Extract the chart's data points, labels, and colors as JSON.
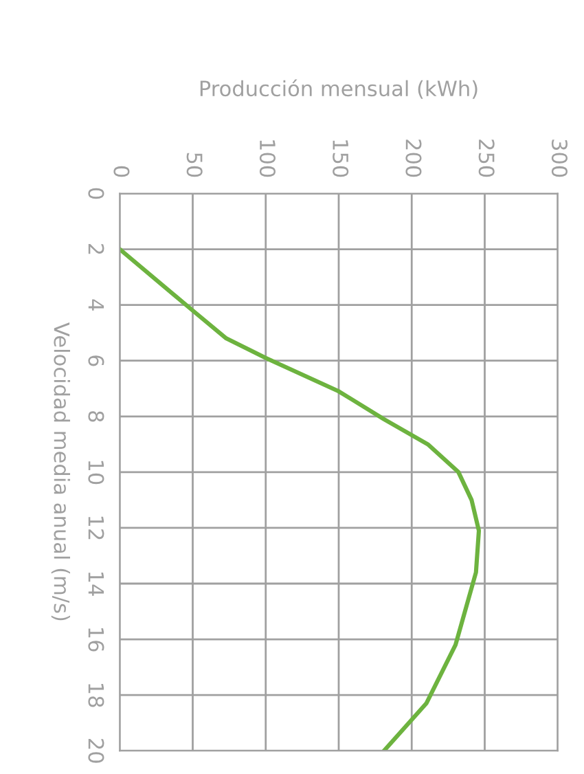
{
  "chart_data": {
    "type": "line",
    "xlabel": "Producción mensual (kWh)",
    "ylabel": "Velocidad media anual (m/s)",
    "series": [
      {
        "color": "#6db33f",
        "x": [
          0,
          50,
          73,
          100,
          150,
          181,
          211,
          232,
          241,
          246,
          244,
          230,
          210,
          181
        ],
        "values": [
          2,
          4.2,
          5.2,
          5.9,
          7.1,
          8.1,
          9,
          10,
          11,
          12.1,
          13.6,
          16.2,
          18.3,
          20
        ]
      }
    ],
    "xlim": [
      0,
      300
    ],
    "xticks": [
      0,
      50,
      100,
      150,
      200,
      250,
      300
    ],
    "ylim": [
      20,
      0
    ],
    "yticks": [
      0,
      2,
      4,
      6,
      8,
      10,
      12,
      14,
      16,
      18,
      20
    ],
    "grid": true,
    "legend": false,
    "marker": "none",
    "line_style": "solid"
  }
}
